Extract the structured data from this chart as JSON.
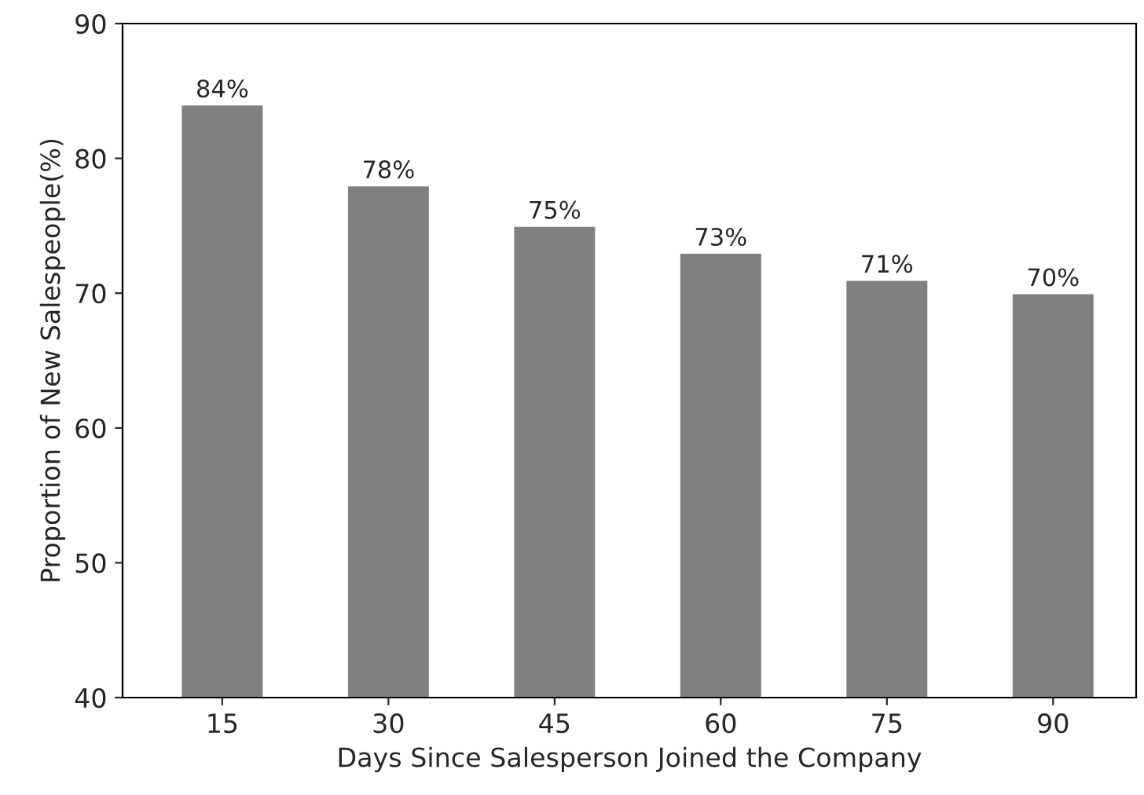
{
  "chart_data": {
    "type": "bar",
    "xlabel": "Days Since Salesperson Joined the Company",
    "ylabel": "Proportion of New Salespeople(%)",
    "categories": [
      "15",
      "30",
      "45",
      "60",
      "75",
      "90"
    ],
    "values": [
      84,
      78,
      75,
      73,
      71,
      70
    ],
    "value_labels": [
      "84%",
      "78%",
      "75%",
      "73%",
      "71%",
      "70%"
    ],
    "color": "#808080",
    "ylim": [
      40,
      90
    ],
    "yticks": [
      40,
      50,
      60,
      70,
      80,
      90
    ],
    "grid": false
  }
}
